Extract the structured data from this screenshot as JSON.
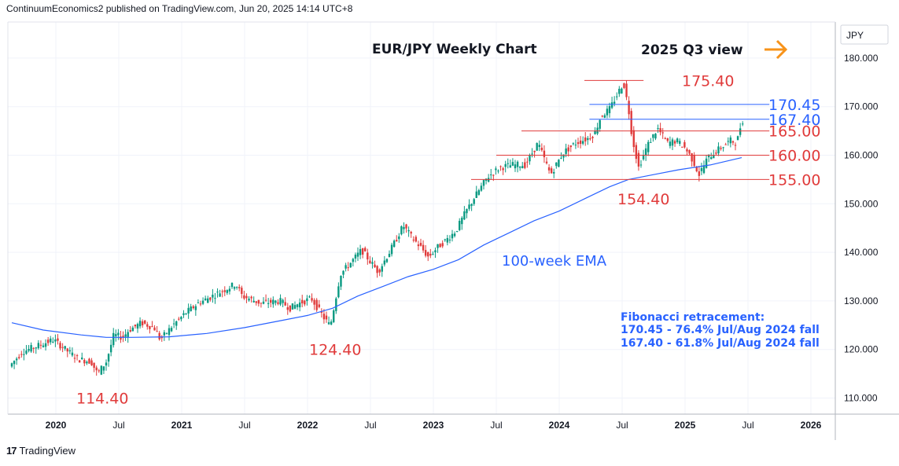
{
  "header": {
    "text": "ContinuumEconomics2 published on TradingView.com, Jun 20, 2025 14:14 UTC+8"
  },
  "footer": {
    "logo": "17",
    "brand": "TradingView"
  },
  "chart_data": {
    "type": "candlestick",
    "title": "EUR/JPY Weekly Chart",
    "subtitle": "2025 Q3 view",
    "currency": "JPY",
    "arrow_color": "#f7931a",
    "up_color": "#089981",
    "down_color": "#e03b3b",
    "ylim": [
      106,
      186
    ],
    "y_ticks": [
      {
        "value": 110,
        "label": "110.000"
      },
      {
        "value": 120,
        "label": "120.000"
      },
      {
        "value": 130,
        "label": "130.000"
      },
      {
        "value": 140,
        "label": "140.000"
      },
      {
        "value": 150,
        "label": "150.000"
      },
      {
        "value": 160,
        "label": "160.000"
      },
      {
        "value": 170,
        "label": "170.000"
      },
      {
        "value": 180,
        "label": "180.000"
      }
    ],
    "x_ticks": [
      {
        "t": 2020.0,
        "label": "2020"
      },
      {
        "t": 2020.5,
        "label": "Jul"
      },
      {
        "t": 2021.0,
        "label": "2021"
      },
      {
        "t": 2021.5,
        "label": "Jul"
      },
      {
        "t": 2022.0,
        "label": "2022"
      },
      {
        "t": 2022.5,
        "label": "Jul"
      },
      {
        "t": 2023.0,
        "label": "2023"
      },
      {
        "t": 2023.5,
        "label": "Jul"
      },
      {
        "t": 2024.0,
        "label": "2024"
      },
      {
        "t": 2024.5,
        "label": "Jul"
      },
      {
        "t": 2025.0,
        "label": "2025"
      },
      {
        "t": 2025.5,
        "label": "Jul"
      },
      {
        "t": 2026.0,
        "label": "2026"
      }
    ],
    "price_path": [
      [
        2019.65,
        116.5
      ],
      [
        2019.75,
        119.5
      ],
      [
        2019.9,
        121.0
      ],
      [
        2020.0,
        122.0
      ],
      [
        2020.12,
        119.5
      ],
      [
        2020.2,
        118.0
      ],
      [
        2020.3,
        117.5
      ],
      [
        2020.35,
        115.0
      ],
      [
        2020.42,
        117.5
      ],
      [
        2020.48,
        123.0
      ],
      [
        2020.55,
        122.5
      ],
      [
        2020.6,
        124.0
      ],
      [
        2020.7,
        125.5
      ],
      [
        2020.8,
        124.5
      ],
      [
        2020.85,
        122.0
      ],
      [
        2020.95,
        125.0
      ],
      [
        2021.05,
        127.5
      ],
      [
        2021.15,
        129.5
      ],
      [
        2021.3,
        131.5
      ],
      [
        2021.45,
        133.5
      ],
      [
        2021.5,
        131.0
      ],
      [
        2021.65,
        129.5
      ],
      [
        2021.8,
        130.0
      ],
      [
        2021.88,
        128.5
      ],
      [
        2021.95,
        129.5
      ],
      [
        2022.05,
        130.5
      ],
      [
        2022.15,
        126.5
      ],
      [
        2022.2,
        124.8
      ],
      [
        2022.28,
        135.5
      ],
      [
        2022.35,
        137.5
      ],
      [
        2022.45,
        140.5
      ],
      [
        2022.52,
        138.0
      ],
      [
        2022.58,
        136.0
      ],
      [
        2022.68,
        140.5
      ],
      [
        2022.78,
        145.5
      ],
      [
        2022.85,
        143.0
      ],
      [
        2022.92,
        141.0
      ],
      [
        2022.98,
        139.0
      ],
      [
        2023.05,
        141.0
      ],
      [
        2023.12,
        142.5
      ],
      [
        2023.2,
        144.5
      ],
      [
        2023.28,
        148.5
      ],
      [
        2023.35,
        151.5
      ],
      [
        2023.45,
        155.5
      ],
      [
        2023.55,
        157.5
      ],
      [
        2023.65,
        158.0
      ],
      [
        2023.75,
        158.0
      ],
      [
        2023.85,
        162.5
      ],
      [
        2023.95,
        156.0
      ],
      [
        2024.05,
        160.5
      ],
      [
        2024.15,
        162.5
      ],
      [
        2024.25,
        163.5
      ],
      [
        2024.3,
        164.5
      ],
      [
        2024.35,
        168.0
      ],
      [
        2024.42,
        169.5
      ],
      [
        2024.48,
        172.5
      ],
      [
        2024.53,
        175.0
      ],
      [
        2024.57,
        169.5
      ],
      [
        2024.6,
        163.5
      ],
      [
        2024.65,
        157.5
      ],
      [
        2024.72,
        162.0
      ],
      [
        2024.8,
        165.5
      ],
      [
        2024.88,
        162.5
      ],
      [
        2024.95,
        163.0
      ],
      [
        2025.02,
        161.5
      ],
      [
        2025.08,
        159.0
      ],
      [
        2025.13,
        156.0
      ],
      [
        2025.2,
        159.5
      ],
      [
        2025.3,
        161.5
      ],
      [
        2025.38,
        163.0
      ],
      [
        2025.43,
        162.5
      ],
      [
        2025.47,
        167.2
      ]
    ],
    "ema_path": [
      [
        2019.65,
        125.5
      ],
      [
        2019.9,
        124.0
      ],
      [
        2020.2,
        123.0
      ],
      [
        2020.4,
        122.5
      ],
      [
        2020.6,
        122.5
      ],
      [
        2020.9,
        122.6
      ],
      [
        2021.2,
        123.3
      ],
      [
        2021.5,
        124.5
      ],
      [
        2021.8,
        126.0
      ],
      [
        2022.0,
        127.0
      ],
      [
        2022.2,
        128.5
      ],
      [
        2022.4,
        131.0
      ],
      [
        2022.6,
        133.0
      ],
      [
        2022.8,
        135.0
      ],
      [
        2023.0,
        136.5
      ],
      [
        2023.2,
        138.5
      ],
      [
        2023.4,
        141.5
      ],
      [
        2023.6,
        144.0
      ],
      [
        2023.8,
        146.5
      ],
      [
        2024.0,
        148.5
      ],
      [
        2024.2,
        151.0
      ],
      [
        2024.4,
        153.5
      ],
      [
        2024.55,
        155.0
      ],
      [
        2024.75,
        156.0
      ],
      [
        2024.95,
        157.0
      ],
      [
        2025.2,
        158.0
      ],
      [
        2025.45,
        159.5
      ]
    ],
    "ema_label": "100-week EMA",
    "levels": [
      {
        "value": 175.4,
        "label": "175.40",
        "color": "#e03b3b",
        "t_start": 2024.2,
        "t_end": 2024.67
      },
      {
        "value": 170.45,
        "label": "170.45",
        "color": "#2962ff",
        "t_start": 2024.24,
        "t_end": 2025.67
      },
      {
        "value": 167.4,
        "label": "167.40",
        "color": "#2962ff",
        "t_start": 2024.24,
        "t_end": 2025.67
      },
      {
        "value": 165.0,
        "label": "165.00",
        "color": "#e03b3b",
        "t_start": 2023.7,
        "t_end": 2025.67
      },
      {
        "value": 160.0,
        "label": "160.00",
        "color": "#e03b3b",
        "t_start": 2023.5,
        "t_end": 2025.67
      },
      {
        "value": 155.0,
        "label": "155.00",
        "color": "#e03b3b",
        "t_start": 2023.3,
        "t_end": 2025.67
      }
    ],
    "low_annotations": [
      {
        "label": "114.40",
        "t": 2020.35,
        "value": 114.4
      },
      {
        "label": "124.40",
        "t": 2022.2,
        "value": 124.4
      },
      {
        "label": "154.40",
        "t": 2024.65,
        "value": 154.4
      }
    ],
    "fibonacci": {
      "title": "Fibonacci retracement:",
      "lines": [
        "170.45 - 76.4% Jul/Aug 2024 fall",
        "167.40 - 61.8% Jul/Aug 2024 fall"
      ]
    }
  }
}
